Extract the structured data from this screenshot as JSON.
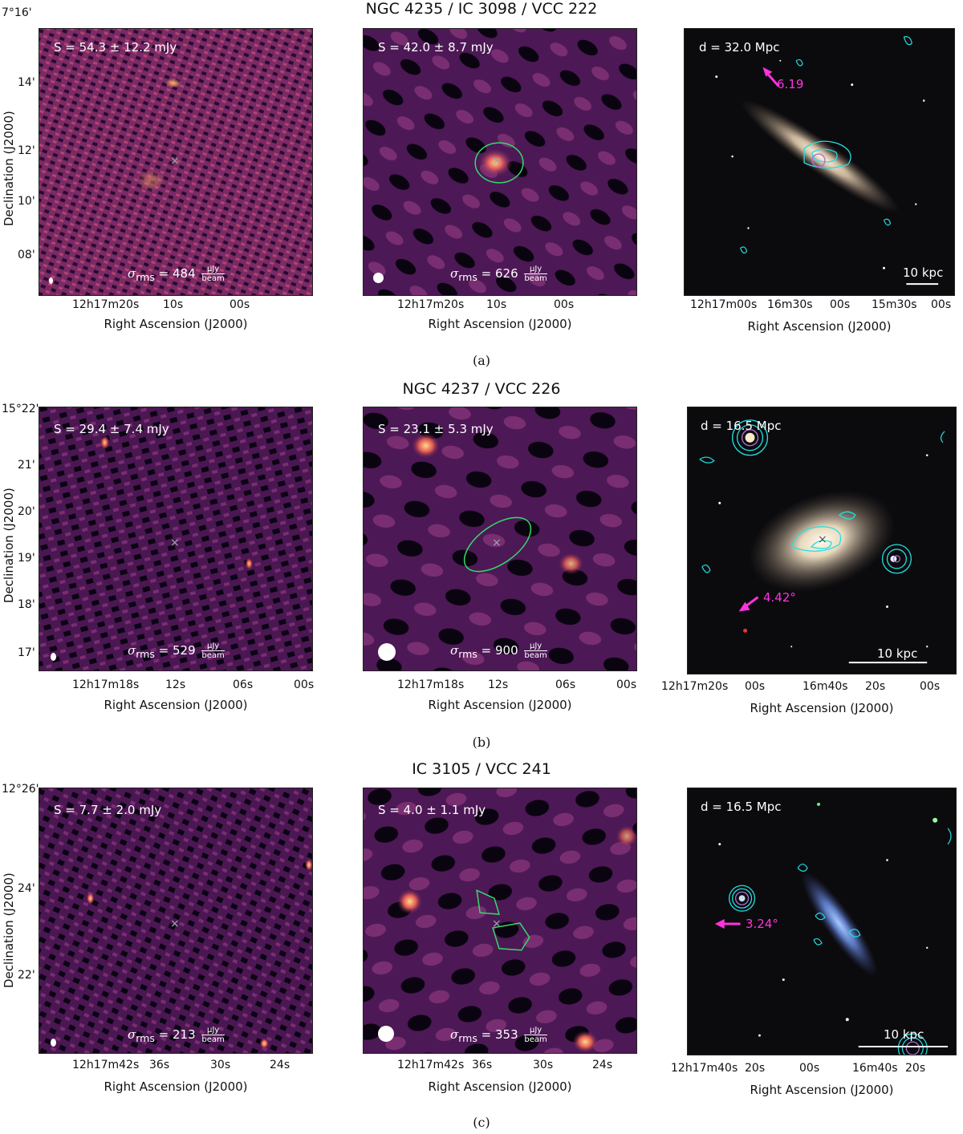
{
  "rows": [
    {
      "title": "NGC 4235 / IC 3098 / VCC 222",
      "caption": "(a)",
      "yticks": [
        "7°16'",
        "14'",
        "12'",
        "10'",
        "08'"
      ],
      "ylabel": "Declination (J2000)",
      "xlabel": "Right Ascension (J2000)",
      "p1": {
        "flux": "S = 54.3 ± 12.2 mJy",
        "rms_prefix": "σ",
        "rms_sub": "rms",
        "rms_value": "= 484",
        "rms_num": "μJy",
        "rms_den": "beam",
        "xticks": [
          "12h17m20s",
          "10s",
          "00s"
        ]
      },
      "p2": {
        "flux": "S = 42.0 ± 8.7 mJy",
        "rms_prefix": "σ",
        "rms_sub": "rms",
        "rms_value": "= 626",
        "rms_num": "μJy",
        "rms_den": "beam",
        "xticks": [
          "12h17m20s",
          "10s",
          "00s"
        ]
      },
      "p3": {
        "distance": "d = 32.0 Mpc",
        "arrow_label": "6.19",
        "scalebar": "10 kpc",
        "xticks": [
          "12h17m00s",
          "16m30s",
          "00s",
          "15m30s",
          "00s"
        ]
      }
    },
    {
      "title": "NGC 4237 / VCC 226",
      "caption": "(b)",
      "yticks": [
        "15°22'",
        "21'",
        "20'",
        "19'",
        "18'",
        "17'"
      ],
      "ylabel": "Declination (J2000)",
      "xlabel": "Right Ascension (J2000)",
      "p1": {
        "flux": "S = 29.4 ± 7.4 mJy",
        "rms_prefix": "σ",
        "rms_sub": "rms",
        "rms_value": "= 529",
        "rms_num": "μJy",
        "rms_den": "beam",
        "xticks": [
          "12h17m18s",
          "12s",
          "06s",
          "00s"
        ]
      },
      "p2": {
        "flux": "S = 23.1 ± 5.3 mJy",
        "rms_prefix": "σ",
        "rms_sub": "rms",
        "rms_value": "= 900",
        "rms_num": "μJy",
        "rms_den": "beam",
        "xticks": [
          "12h17m18s",
          "12s",
          "06s",
          "00s"
        ]
      },
      "p3": {
        "distance": "d = 16.5 Mpc",
        "arrow_label": "4.42°",
        "scalebar": "10 kpc",
        "xticks": [
          "12h17m20s",
          "00s",
          "16m40s",
          "20s",
          "00s"
        ]
      }
    },
    {
      "title": "IC 3105 / VCC 241",
      "caption": "(c)",
      "yticks": [
        "12°26'",
        "24'",
        "22'"
      ],
      "ylabel": "Declination (J2000)",
      "xlabel": "Right Ascension (J2000)",
      "p1": {
        "flux": "S = 7.7 ± 2.0 mJy",
        "rms_prefix": "σ",
        "rms_sub": "rms",
        "rms_value": "= 213",
        "rms_num": "μJy",
        "rms_den": "beam",
        "xticks": [
          "12h17m42s",
          "36s",
          "30s",
          "24s"
        ]
      },
      "p2": {
        "flux": "S = 4.0 ± 1.1 mJy",
        "rms_prefix": "σ",
        "rms_sub": "rms",
        "rms_value": "= 353",
        "rms_num": "μJy",
        "rms_den": "beam",
        "xticks": [
          "12h17m42s",
          "36s",
          "30s",
          "24s"
        ]
      },
      "p3": {
        "distance": "d = 16.5 Mpc",
        "arrow_label": "3.24°",
        "scalebar": "10 kpc",
        "xticks": [
          "12h17m40s",
          "20s",
          "00s",
          "16m40s",
          "20s"
        ]
      }
    }
  ],
  "colors": {
    "radio_bg": "#3a1248",
    "contour": "#22e0e0",
    "region": "#33dd66",
    "arrow": "#ff33dd",
    "optical_bg": "#0b0b0e"
  }
}
